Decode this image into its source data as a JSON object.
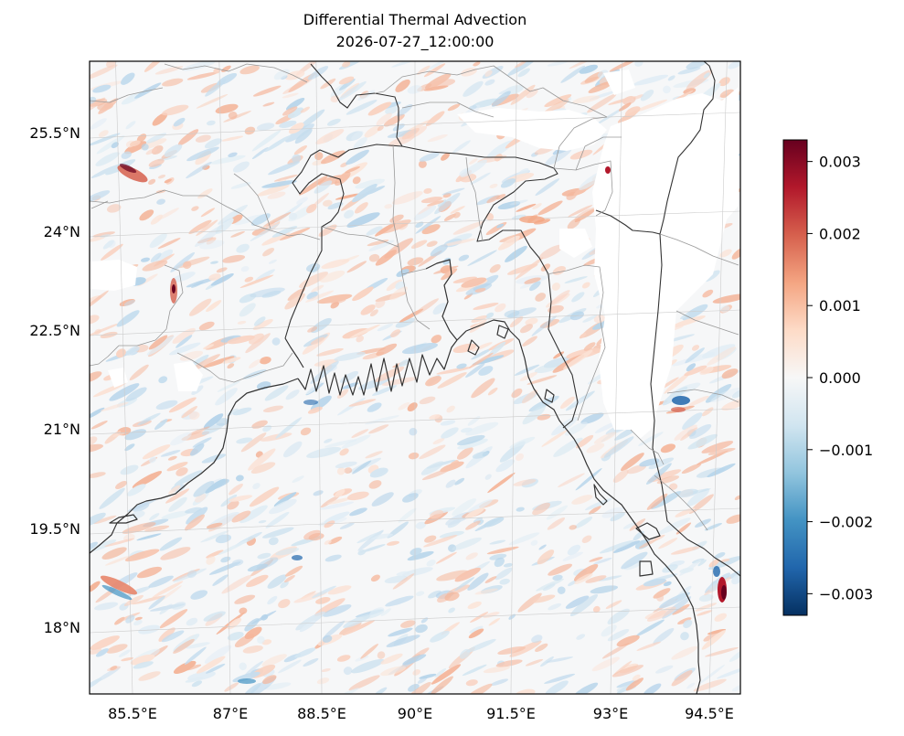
{
  "title": {
    "line1": "Differential Thermal Advection",
    "line2": "2026-07-27_12:00:00"
  },
  "map": {
    "projection": "lambert-conformal",
    "region": "Bay of Bengal / Bangladesh",
    "lat_range": [
      17.0,
      26.5
    ],
    "lon_range": [
      84.8,
      95.0
    ],
    "lat_ticks": [
      {
        "value": 25.5,
        "label": "25.5°N"
      },
      {
        "value": 24.0,
        "label": "24°N"
      },
      {
        "value": 22.5,
        "label": "22.5°N"
      },
      {
        "value": 21.0,
        "label": "21°N"
      },
      {
        "value": 19.5,
        "label": "19.5°N"
      },
      {
        "value": 18.0,
        "label": "18°N"
      }
    ],
    "lon_ticks": [
      {
        "value": 85.5,
        "label": "85.5°E"
      },
      {
        "value": 87.0,
        "label": "87°E"
      },
      {
        "value": 88.5,
        "label": "88.5°E"
      },
      {
        "value": 90.0,
        "label": "90°E"
      },
      {
        "value": 91.5,
        "label": "91.5°E"
      },
      {
        "value": 93.0,
        "label": "93°E"
      },
      {
        "value": 94.5,
        "label": "94.5°E"
      }
    ],
    "gridlines": true,
    "colors": {
      "coastline": "#333333",
      "borders": "#999999",
      "gridline": "#cccccc",
      "missing": "#ffffff"
    }
  },
  "colorbar": {
    "colormap": "RdBu_r",
    "range": [
      -0.0033,
      0.0033
    ],
    "ticks": [
      {
        "value": 0.003,
        "label": "0.003"
      },
      {
        "value": 0.002,
        "label": "0.002"
      },
      {
        "value": 0.001,
        "label": "0.001"
      },
      {
        "value": 0.0,
        "label": "0.000"
      },
      {
        "value": -0.001,
        "label": "−0.001"
      },
      {
        "value": -0.002,
        "label": "−0.002"
      },
      {
        "value": -0.003,
        "label": "−0.003"
      }
    ],
    "stops": [
      "#053061",
      "#2166ac",
      "#4393c3",
      "#92c5de",
      "#d1e5f0",
      "#f7f7f7",
      "#fddbc7",
      "#f4a582",
      "#d6604d",
      "#b2182b",
      "#67001f"
    ]
  }
}
